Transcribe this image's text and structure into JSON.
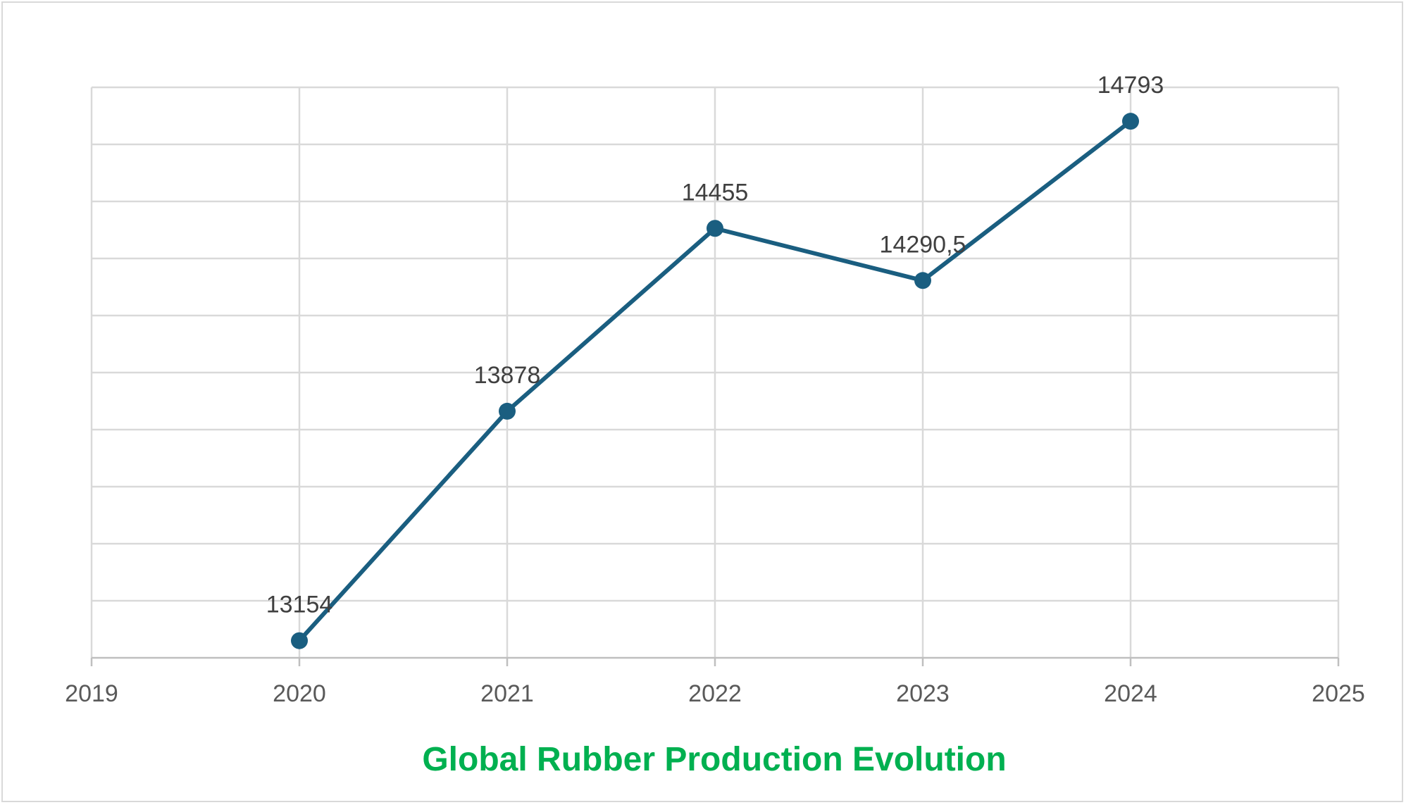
{
  "chart_data": {
    "type": "scatter",
    "mode": "lines+markers",
    "title": "Global Rubber Production Evolution",
    "xlabel": "",
    "ylabel": "",
    "xlim": [
      2019,
      2025
    ],
    "ylim": [
      13100,
      14900
    ],
    "x_ticks": [
      2019,
      2020,
      2021,
      2022,
      2023,
      2024,
      2025
    ],
    "x_tick_labels": [
      "2019",
      "2020",
      "2021",
      "2022",
      "2023",
      "2024",
      "2025"
    ],
    "y_gridlines": 10,
    "grid": true,
    "legend": "none",
    "series": [
      {
        "name": "Global Rubber Production",
        "x": [
          2020,
          2021,
          2022,
          2023,
          2024
        ],
        "y": [
          13154,
          13878,
          14455,
          14290.5,
          14793
        ],
        "labels": [
          "13154",
          "13878",
          "14455",
          "14290,5",
          "14793"
        ],
        "color": "#1a5e80"
      }
    ],
    "title_color": "#00b050"
  }
}
